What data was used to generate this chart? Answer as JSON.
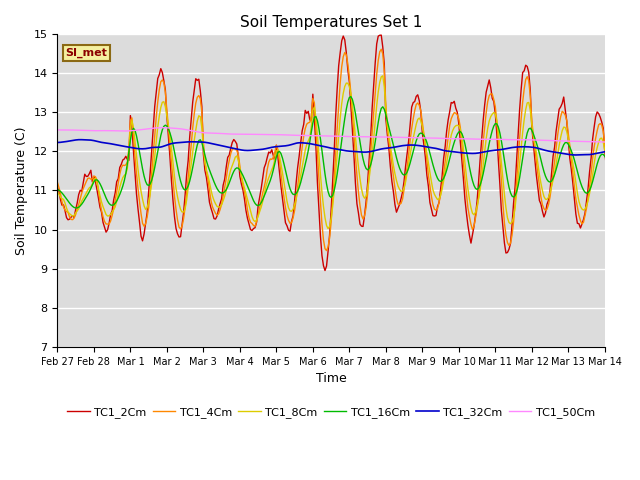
{
  "title": "Soil Temperatures Set 1",
  "xlabel": "Time",
  "ylabel": "Soil Temperature (C)",
  "ylim": [
    7.0,
    15.0
  ],
  "yticks": [
    7.0,
    8.0,
    9.0,
    10.0,
    11.0,
    12.0,
    13.0,
    14.0,
    15.0
  ],
  "annotation": "SI_met",
  "bg_color": "#e8e8e8",
  "plot_bg": "#dcdcdc",
  "series": [
    {
      "label": "TC1_2Cm",
      "color": "#cc0000",
      "lw": 1.0
    },
    {
      "label": "TC1_4Cm",
      "color": "#ff8800",
      "lw": 1.0
    },
    {
      "label": "TC1_8Cm",
      "color": "#ddcc00",
      "lw": 1.0
    },
    {
      "label": "TC1_16Cm",
      "color": "#00bb00",
      "lw": 1.0
    },
    {
      "label": "TC1_32Cm",
      "color": "#0000cc",
      "lw": 1.2
    },
    {
      "label": "TC1_50Cm",
      "color": "#ff88ff",
      "lw": 1.0
    }
  ],
  "xtick_labels": [
    "Feb 27",
    "Feb 28",
    "Mar 1",
    "Mar 2",
    "Mar 3",
    "Mar 4",
    "Mar 5",
    "Mar 6",
    "Mar 7",
    "Mar 8",
    "Mar 9",
    "Mar 10",
    "Mar 11",
    "Mar 12",
    "Mar 13",
    "Mar 14"
  ],
  "xtick_positions": [
    0,
    24,
    48,
    72,
    96,
    120,
    144,
    168,
    192,
    216,
    240,
    264,
    288,
    312,
    336,
    360
  ]
}
